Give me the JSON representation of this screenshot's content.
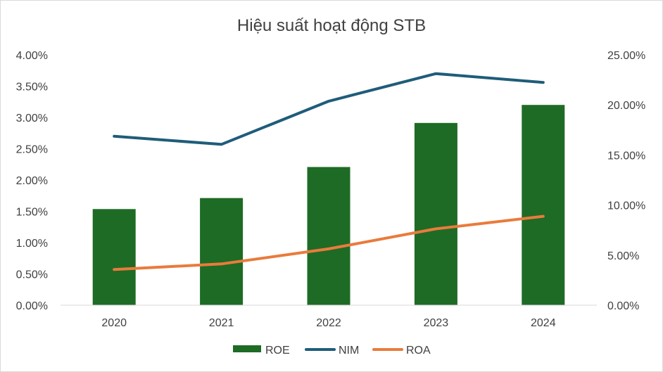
{
  "chart_data": {
    "type": "bar",
    "title": "Hiệu suất hoạt động STB",
    "categories": [
      "2020",
      "2021",
      "2022",
      "2023",
      "2024"
    ],
    "left_axis": {
      "ticks": [
        "0.00%",
        "0.50%",
        "1.00%",
        "1.50%",
        "2.00%",
        "2.50%",
        "3.00%",
        "3.50%",
        "4.00%"
      ],
      "ylim": [
        0,
        4.0
      ],
      "unit": "%"
    },
    "right_axis": {
      "ticks": [
        "0.00%",
        "5.00%",
        "10.00%",
        "15.00%",
        "20.00%",
        "25.00%"
      ],
      "ylim": [
        0,
        25.0
      ],
      "unit": "%"
    },
    "series": [
      {
        "name": "ROE",
        "kind": "bar",
        "axis": "right",
        "color": "#1e6b25",
        "values": [
          9.6,
          10.7,
          13.8,
          18.2,
          20.0
        ]
      },
      {
        "name": "NIM",
        "kind": "line",
        "axis": "left",
        "color": "#1f5c7a",
        "values": [
          2.7,
          2.57,
          3.26,
          3.7,
          3.56
        ]
      },
      {
        "name": "ROA",
        "kind": "line",
        "axis": "left",
        "color": "#e97b3c",
        "values": [
          0.57,
          0.66,
          0.9,
          1.22,
          1.42
        ]
      }
    ],
    "legend_position": "bottom",
    "grid": false
  }
}
